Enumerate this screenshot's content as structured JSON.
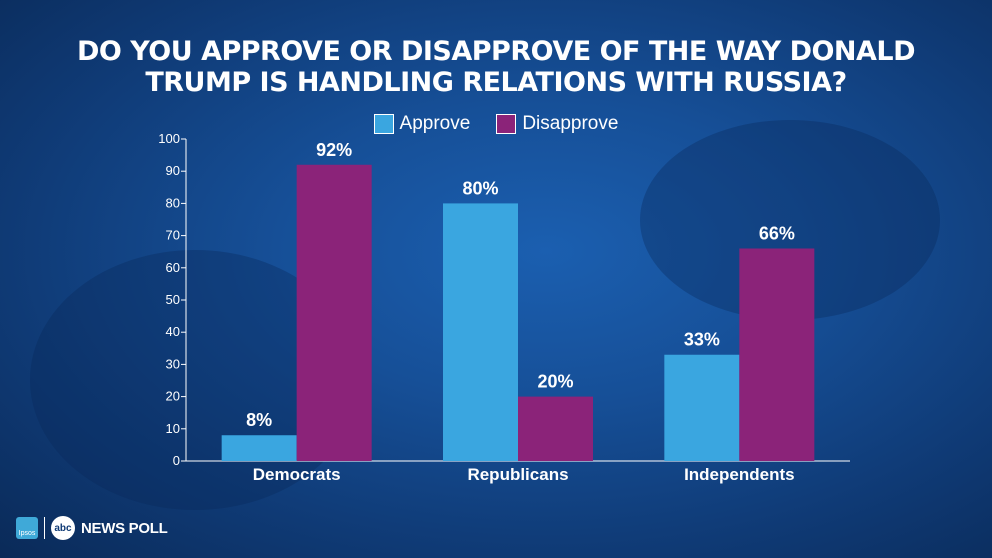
{
  "title_lines": [
    "DO YOU APPROVE OR DISAPPROVE OF THE WAY DONALD",
    "TRUMP IS HANDLING RELATIONS WITH RUSSIA?"
  ],
  "footer": {
    "ipsos_label": "Ipsos",
    "abc_label": "abc",
    "news_poll_label": "NEWS POLL"
  },
  "colors": {
    "approve": "#3aa6e0",
    "disapprove": "#8b2379",
    "axis": "#ffffff",
    "text": "#ffffff"
  },
  "chart_data": {
    "type": "bar",
    "title": "DO YOU APPROVE OR DISAPPROVE OF THE WAY DONALD TRUMP IS HANDLING RELATIONS WITH RUSSIA?",
    "categories": [
      "Democrats",
      "Republicans",
      "Independents"
    ],
    "series": [
      {
        "name": "Approve",
        "values": [
          8,
          80,
          33
        ],
        "labels": [
          "8%",
          "80%",
          "33%"
        ]
      },
      {
        "name": "Disapprove",
        "values": [
          92,
          20,
          66
        ],
        "labels": [
          "92%",
          "20%",
          "66%"
        ]
      }
    ],
    "ylim": [
      0,
      100
    ],
    "yticks": [
      0,
      10,
      20,
      30,
      40,
      50,
      60,
      70,
      80,
      90,
      100
    ],
    "grid": false,
    "legend": "top-center"
  }
}
